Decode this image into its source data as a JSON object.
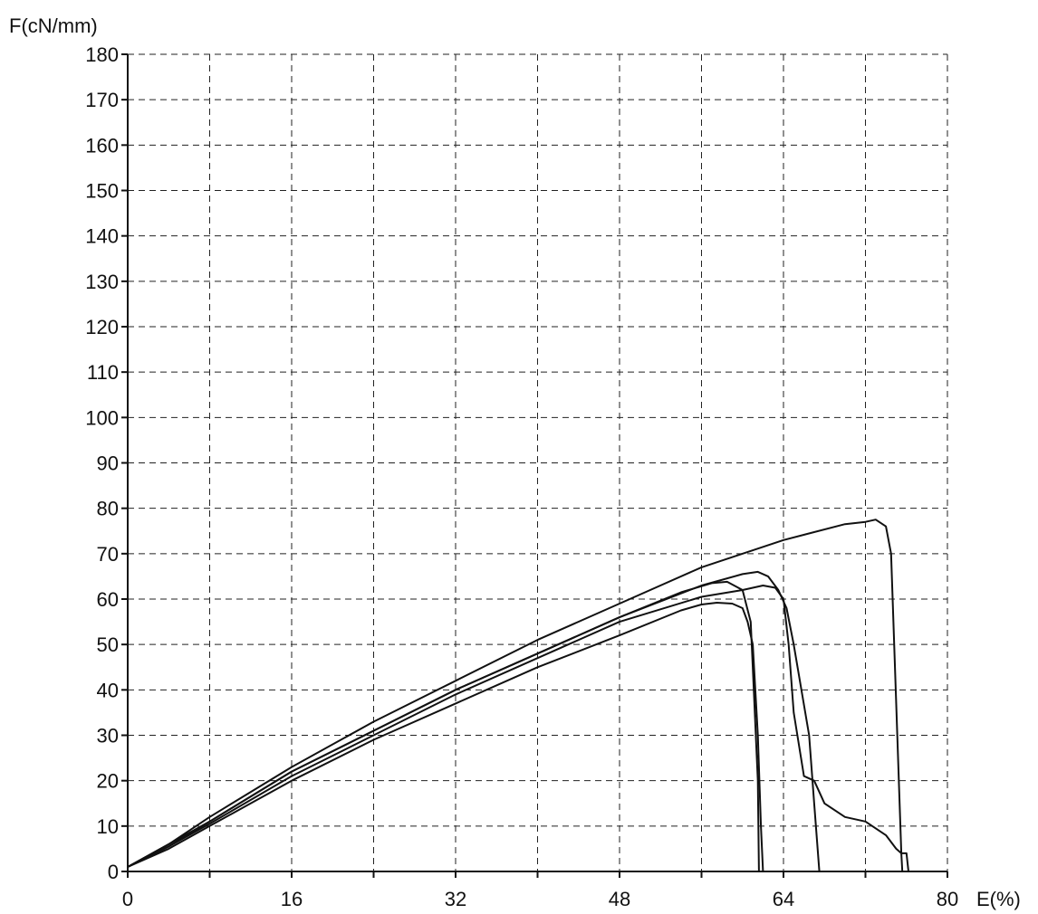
{
  "chart_data": {
    "type": "line",
    "title": "",
    "ylabel": "F(cN/mm)",
    "xlabel": "E(%)",
    "xlim": [
      0,
      80
    ],
    "ylim": [
      0,
      180
    ],
    "xticks": [
      0,
      16,
      32,
      48,
      64,
      80
    ],
    "yticks": [
      0,
      10,
      20,
      30,
      40,
      50,
      60,
      70,
      80,
      90,
      100,
      110,
      120,
      130,
      140,
      150,
      160,
      170,
      180
    ],
    "grid": true,
    "series": [
      {
        "x": [
          0,
          4,
          8,
          16,
          24,
          32,
          40,
          48,
          56,
          64,
          70,
          72,
          73,
          74,
          74.5,
          75.5,
          76,
          76,
          76.2
        ],
        "y": [
          1,
          6,
          12,
          23,
          33,
          42,
          51,
          59,
          67,
          73,
          76.5,
          77,
          77.5,
          76,
          70,
          4,
          4,
          4,
          0
        ]
      },
      {
        "x": [
          0,
          4,
          8,
          16,
          24,
          32,
          40,
          48,
          56,
          60,
          61.5,
          62.5,
          63.5,
          64.3,
          65,
          66.5,
          67,
          67.5
        ],
        "y": [
          1,
          6,
          11,
          22,
          31,
          40,
          48,
          56,
          63,
          65.5,
          66,
          65,
          62,
          58,
          50,
          30,
          15,
          0
        ]
      },
      {
        "x": [
          0,
          4,
          8,
          16,
          24,
          32,
          40,
          48,
          56,
          60,
          62,
          63.2,
          64,
          64.5,
          65,
          66,
          67,
          68,
          70,
          72,
          74,
          75,
          75.5,
          75.6
        ],
        "y": [
          1,
          5.5,
          10.5,
          21,
          30,
          39,
          47,
          55,
          60.5,
          62,
          63,
          62.5,
          60,
          50,
          35,
          21,
          20,
          15,
          12,
          11,
          8,
          5,
          4,
          0
        ]
      },
      {
        "x": [
          0,
          4,
          8,
          16,
          24,
          32,
          40,
          48,
          54,
          57,
          58.5,
          60,
          60.8,
          61,
          61.5,
          61.6
        ],
        "y": [
          1,
          5.5,
          11,
          22,
          31,
          40,
          48,
          56,
          61.5,
          63.5,
          63.8,
          62,
          55,
          45,
          20,
          0
        ]
      },
      {
        "x": [
          0,
          4,
          8,
          16,
          24,
          32,
          40,
          48,
          54,
          56,
          57.5,
          59,
          60,
          60.5,
          61,
          61.5,
          61.8,
          62
        ],
        "y": [
          1,
          5,
          10,
          20,
          29,
          37,
          45,
          52,
          57.5,
          58.8,
          59.2,
          59,
          58,
          55,
          50,
          30,
          10,
          0
        ]
      }
    ]
  }
}
